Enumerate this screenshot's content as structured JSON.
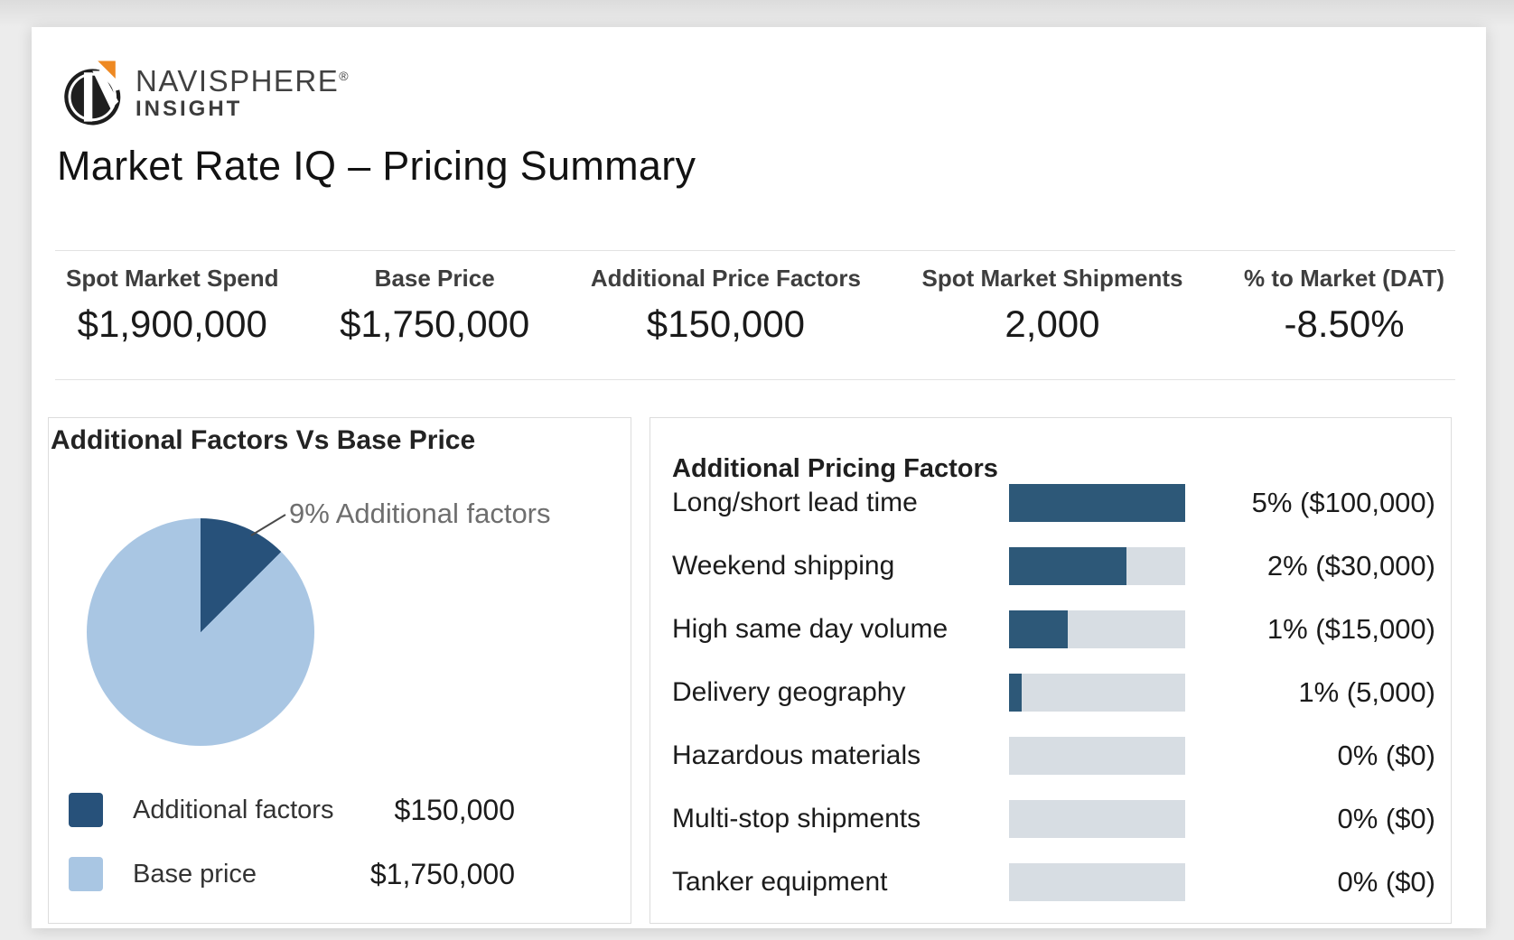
{
  "brand": {
    "name": "NAVISPHERE",
    "registered": "®",
    "subname": "INSIGHT"
  },
  "page_title": "Market Rate IQ – Pricing Summary",
  "kpis": [
    {
      "label": "Spot Market Spend",
      "value": "$1,900,000"
    },
    {
      "label": "Base Price",
      "value": "$1,750,000"
    },
    {
      "label": "Additional Price Factors",
      "value": "$150,000"
    },
    {
      "label": "Spot Market Shipments",
      "value": "2,000"
    },
    {
      "label": "% to Market (DAT)",
      "value": "-8.50%"
    }
  ],
  "colors": {
    "pie_navy": "#27517A",
    "bar_navy": "#2D5878",
    "light_blue": "#A9C6E3",
    "track_gray": "#D7DDE3",
    "logo_orange": "#EE8922"
  },
  "chart_data": [
    {
      "type": "pie",
      "title": "Additional Factors Vs Base Price",
      "annotation": "9% Additional factors",
      "wedge_sweep_deg": 45,
      "legend_position": "bottom-left",
      "slices": [
        {
          "label": "Additional factors",
          "value": 150000,
          "display": "$150,000",
          "pct_label": "9%",
          "color": "#27517A"
        },
        {
          "label": "Base price",
          "value": 1750000,
          "display": "$1,750,000",
          "color": "#A9C6E3"
        }
      ]
    },
    {
      "type": "bar",
      "orientation": "horizontal",
      "title": "Additional Pricing Factors",
      "categories": [
        "Long/short lead time",
        "Weekend shipping",
        "High same day volume",
        "Delivery geography",
        "Hazardous materials",
        "Multi-stop shipments",
        "Tanker equipment"
      ],
      "percents": [
        5,
        2,
        1,
        1,
        0,
        0,
        0
      ],
      "amounts": [
        100000,
        30000,
        15000,
        5000,
        0,
        0,
        0
      ],
      "value_labels": [
        "5% ($100,000)",
        "2% ($30,000)",
        "1% ($15,000)",
        "1% (5,000)",
        "0% ($0)",
        "0% ($0)",
        "0% ($0)"
      ],
      "fill_fractions_pct": [
        100,
        66.5,
        33.5,
        7,
        0,
        0,
        0
      ],
      "bar_color": "#2D5878",
      "track_color": "#D7DDE3",
      "grid": false,
      "legend": false
    }
  ]
}
